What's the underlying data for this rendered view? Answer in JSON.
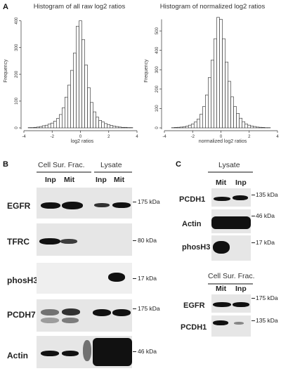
{
  "panels": {
    "a": "A",
    "b": "B",
    "c": "C"
  },
  "hist_raw": {
    "title": "Histogram of all raw log2 ratios",
    "xlabel": "log2 ratios",
    "ylabel": "Frequency",
    "chart_data": {
      "type": "bar",
      "x_bins": [
        -3.8,
        -3.6,
        -3.4,
        -3.2,
        -3.0,
        -2.8,
        -2.6,
        -2.4,
        -2.2,
        -2.0,
        -1.8,
        -1.6,
        -1.4,
        -1.2,
        -1.0,
        -0.8,
        -0.6,
        -0.4,
        -0.2,
        0.0,
        0.2,
        0.4,
        0.6,
        0.8,
        1.0,
        1.2,
        1.4,
        1.6,
        1.8,
        2.0,
        2.2,
        2.4,
        2.6,
        2.8,
        3.0,
        3.2,
        3.4,
        3.6,
        3.8
      ],
      "values": [
        0,
        1,
        1,
        2,
        3,
        5,
        8,
        10,
        14,
        18,
        25,
        35,
        50,
        75,
        115,
        160,
        215,
        280,
        380,
        400,
        330,
        235,
        150,
        95,
        60,
        40,
        28,
        22,
        16,
        12,
        9,
        7,
        5,
        3,
        2,
        2,
        1,
        1,
        0
      ],
      "xlim": [
        -4,
        4
      ],
      "ylim": [
        0,
        420
      ],
      "xticks": [
        "-4",
        "-2",
        "0",
        "2",
        "4"
      ],
      "yticks": [
        "0",
        "100",
        "200",
        "300",
        "400"
      ]
    }
  },
  "hist_norm": {
    "title": "Histogram of normalized log2 ratios",
    "xlabel": "normalized log2 ratios",
    "ylabel": "Frequency",
    "chart_data": {
      "type": "bar",
      "x_bins": [
        -3.8,
        -3.6,
        -3.4,
        -3.2,
        -3.0,
        -2.8,
        -2.6,
        -2.4,
        -2.2,
        -2.0,
        -1.8,
        -1.6,
        -1.4,
        -1.2,
        -1.0,
        -0.8,
        -0.6,
        -0.4,
        -0.2,
        0.0,
        0.2,
        0.4,
        0.6,
        0.8,
        1.0,
        1.2,
        1.4,
        1.6,
        1.8,
        2.0,
        2.2,
        2.4,
        2.6,
        2.8,
        3.0,
        3.2,
        3.4,
        3.6,
        3.8
      ],
      "values": [
        0,
        0,
        1,
        2,
        3,
        4,
        6,
        9,
        14,
        20,
        30,
        45,
        70,
        110,
        170,
        260,
        350,
        460,
        570,
        560,
        460,
        340,
        240,
        160,
        110,
        75,
        50,
        32,
        20,
        14,
        10,
        7,
        4,
        3,
        2,
        1,
        1,
        0,
        0
      ],
      "xlim": [
        -4,
        4
      ],
      "ylim": [
        0,
        580
      ],
      "xticks": [
        "-4",
        "-2",
        "0",
        "2",
        "4"
      ],
      "yticks": [
        "0",
        "100",
        "200",
        "300",
        "400",
        "500"
      ]
    }
  },
  "panel_b": {
    "groups": [
      "Cell Sur. Frac.",
      "Lysate"
    ],
    "lanes": [
      "Inp",
      "Mit",
      "Inp",
      "Mit"
    ],
    "rows": [
      {
        "protein": "EGFR",
        "kda": "175 kDa"
      },
      {
        "protein": "TFRC",
        "kda": "80 kDa"
      },
      {
        "protein": "phosH3",
        "kda": "17 kDa"
      },
      {
        "protein": "PCDH7",
        "kda": "175 kDa"
      },
      {
        "protein": "Actin",
        "kda": "46 kDa"
      }
    ]
  },
  "panel_c": {
    "top": {
      "group": "Lysate",
      "lanes": [
        "Mit",
        "Inp"
      ],
      "rows": [
        {
          "protein": "PCDH1",
          "kda": "135 kDa"
        },
        {
          "protein": "Actin",
          "kda": "46 kDa"
        },
        {
          "protein": "phosH3",
          "kda": "17 kDa"
        }
      ]
    },
    "bottom": {
      "group": "Cell Sur. Frac.",
      "lanes": [
        "Mit",
        "Inp"
      ],
      "rows": [
        {
          "protein": "EGFR",
          "kda": "175 kDa"
        },
        {
          "protein": "PCDH1",
          "kda": "135 kDa"
        }
      ]
    }
  }
}
